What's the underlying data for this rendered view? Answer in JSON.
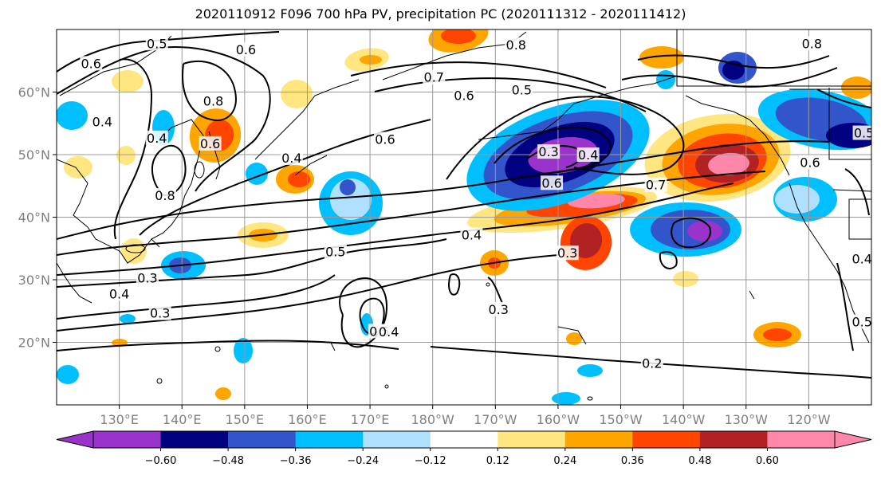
{
  "title": "2020110912 F096 700 hPa PV, precipitation PC (2020111312 - 2020111412)",
  "map": {
    "projection": "cylindrical",
    "lon_range": [
      120,
      250
    ],
    "lat_range": [
      10,
      70
    ],
    "lon_ticks": [
      {
        "value": 130,
        "label": "130°E"
      },
      {
        "value": 140,
        "label": "140°E"
      },
      {
        "value": 150,
        "label": "150°E"
      },
      {
        "value": 160,
        "label": "160°E"
      },
      {
        "value": 170,
        "label": "170°E"
      },
      {
        "value": 180,
        "label": "180°W"
      },
      {
        "value": 190,
        "label": "170°W"
      },
      {
        "value": 200,
        "label": "160°W"
      },
      {
        "value": 210,
        "label": "150°W"
      },
      {
        "value": 220,
        "label": "140°W"
      },
      {
        "value": 230,
        "label": "130°W"
      },
      {
        "value": 240,
        "label": "120°W"
      }
    ],
    "lat_ticks": [
      {
        "value": 20,
        "label": "20°N"
      },
      {
        "value": 30,
        "label": "30°N"
      },
      {
        "value": 40,
        "label": "40°N"
      },
      {
        "value": 50,
        "label": "50°N"
      },
      {
        "value": 60,
        "label": "60°N"
      }
    ],
    "grid": true
  },
  "colorbar": {
    "colors": [
      "#9933cc",
      "#000080",
      "#3355cc",
      "#00bfff",
      "#b0e0ff",
      "#ffffff",
      "#ffe680",
      "#ffa500",
      "#ff4500",
      "#b22222",
      "#ff88aa"
    ],
    "labels": [
      "−0.60",
      "−0.48",
      "−0.36",
      "−0.24",
      "−0.12",
      "0.12",
      "0.24",
      "0.36",
      "0.48",
      "0.60"
    ],
    "extend": "both"
  },
  "contour_labels": [
    {
      "text": "0.5",
      "lon": 136,
      "lat": 67.8
    },
    {
      "text": "0.6",
      "lon": 125.5,
      "lat": 64.6
    },
    {
      "text": "0.6",
      "lon": 150.2,
      "lat": 66.8
    },
    {
      "text": "0.4",
      "lon": 127.3,
      "lat": 55.3
    },
    {
      "text": "0.8",
      "lon": 145,
      "lat": 58.6
    },
    {
      "text": "0.4",
      "lon": 136,
      "lat": 52.7
    },
    {
      "text": "0.6",
      "lon": 144.5,
      "lat": 51.8
    },
    {
      "text": "0.8",
      "lon": 137.3,
      "lat": 43.5
    },
    {
      "text": "0.4",
      "lon": 157.5,
      "lat": 49.5
    },
    {
      "text": "0.6",
      "lon": 172.4,
      "lat": 52.5
    },
    {
      "text": "0.8",
      "lon": 193.3,
      "lat": 67.6
    },
    {
      "text": "0.7",
      "lon": 180.2,
      "lat": 62.4
    },
    {
      "text": "0.6",
      "lon": 185,
      "lat": 59.5
    },
    {
      "text": "0.5",
      "lon": 194.2,
      "lat": 60.4
    },
    {
      "text": "0.3",
      "lon": 198.5,
      "lat": 50.5
    },
    {
      "text": "0.4",
      "lon": 204.8,
      "lat": 50
    },
    {
      "text": "0.6",
      "lon": 199,
      "lat": 45.5
    },
    {
      "text": "0.7",
      "lon": 215.6,
      "lat": 45.2
    },
    {
      "text": "0.8",
      "lon": 240.5,
      "lat": 67.8
    },
    {
      "text": "0.5",
      "lon": 248.8,
      "lat": 53.5
    },
    {
      "text": "0.6",
      "lon": 240.2,
      "lat": 48.8
    },
    {
      "text": "0.4",
      "lon": 186.2,
      "lat": 37.2
    },
    {
      "text": "0.5",
      "lon": 164.5,
      "lat": 34.5
    },
    {
      "text": "0.3",
      "lon": 134.5,
      "lat": 30.3
    },
    {
      "text": "0.4",
      "lon": 130,
      "lat": 27.8
    },
    {
      "text": "0.3",
      "lon": 136.5,
      "lat": 24.7
    },
    {
      "text": "0.3",
      "lon": 201.5,
      "lat": 34.3
    },
    {
      "text": "0.3",
      "lon": 190.5,
      "lat": 25.3
    },
    {
      "text": "0.5",
      "lon": 171.5,
      "lat": 21.8
    },
    {
      "text": "0.4",
      "lon": 173,
      "lat": 21.7
    },
    {
      "text": "0.2",
      "lon": 215,
      "lat": 16.7
    },
    {
      "text": "0.4",
      "lon": 248.5,
      "lat": 33.4
    },
    {
      "text": "0.5",
      "lon": 248.5,
      "lat": 23.3
    }
  ]
}
